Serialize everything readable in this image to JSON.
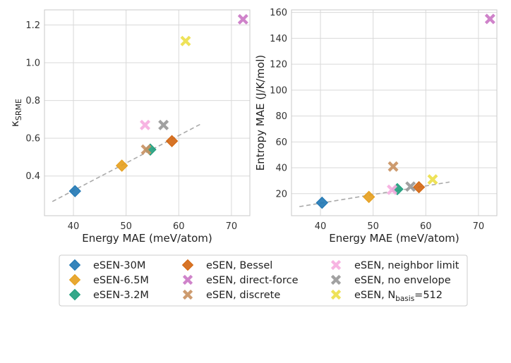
{
  "chart_data": [
    {
      "type": "scatter",
      "xlabel": "Energy MAE (meV/atom)",
      "ylabel_main": "κ",
      "ylabel_sub": "SRME",
      "xlim": [
        34.5,
        73.5
      ],
      "ylim": [
        0.19,
        1.28
      ],
      "xticks": [
        40,
        50,
        60,
        70
      ],
      "yticks": [
        0.4,
        0.6,
        0.8,
        1.0,
        1.2
      ],
      "ytick_labels": [
        "0.4",
        "0.6",
        "0.8",
        "1.0",
        "1.2"
      ],
      "grid": true,
      "trendline": {
        "x": [
          36,
          64.5
        ],
        "y": [
          0.265,
          0.68
        ],
        "style": "dashed"
      },
      "points": [
        {
          "series": "eSEN-30M",
          "x": 40.3,
          "y": 0.32
        },
        {
          "series": "eSEN-6.5M",
          "x": 49.2,
          "y": 0.455
        },
        {
          "series": "eSEN-3.2M",
          "x": 54.6,
          "y": 0.54
        },
        {
          "series": "eSEN, Bessel",
          "x": 58.7,
          "y": 0.585
        },
        {
          "series": "eSEN, direct-force",
          "x": 72.2,
          "y": 1.23
        },
        {
          "series": "eSEN, discrete",
          "x": 53.8,
          "y": 0.54
        },
        {
          "series": "eSEN, neighbor limit",
          "x": 53.6,
          "y": 0.67
        },
        {
          "series": "eSEN, no envelope",
          "x": 57.1,
          "y": 0.67
        },
        {
          "series": "eSEN, N_basis=512",
          "x": 61.3,
          "y": 1.115
        }
      ]
    },
    {
      "type": "scatter",
      "xlabel": "Energy MAE (meV/atom)",
      "ylabel": "Entropy MAE (J/K/mol)",
      "xlim": [
        34.5,
        73.5
      ],
      "ylim": [
        3,
        162
      ],
      "xticks": [
        40,
        50,
        60,
        70
      ],
      "yticks": [
        20,
        40,
        60,
        80,
        100,
        120,
        140,
        160
      ],
      "ytick_labels": [
        "20",
        "40",
        "60",
        "80",
        "100",
        "120",
        "140",
        "160"
      ],
      "grid": true,
      "trendline": {
        "x": [
          36,
          64.5
        ],
        "y": [
          10,
          29
        ],
        "style": "dashed"
      },
      "points": [
        {
          "series": "eSEN-30M",
          "x": 40.3,
          "y": 13
        },
        {
          "series": "eSEN-6.5M",
          "x": 49.2,
          "y": 17.5
        },
        {
          "series": "eSEN-3.2M",
          "x": 54.6,
          "y": 23.5
        },
        {
          "series": "eSEN, Bessel",
          "x": 58.7,
          "y": 25
        },
        {
          "series": "eSEN, direct-force",
          "x": 72.2,
          "y": 155
        },
        {
          "series": "eSEN, discrete",
          "x": 53.8,
          "y": 41
        },
        {
          "series": "eSEN, neighbor limit",
          "x": 53.6,
          "y": 23
        },
        {
          "series": "eSEN, no envelope",
          "x": 57.1,
          "y": 25.5
        },
        {
          "series": "eSEN, N_basis=512",
          "x": 61.3,
          "y": 31
        }
      ]
    }
  ],
  "legend": {
    "placement": "bottom-center",
    "items": [
      {
        "series": "eSEN-30M",
        "label": "eSEN-30M",
        "marker": "diamond",
        "color": "#1f77b4"
      },
      {
        "series": "eSEN-6.5M",
        "label": "eSEN-6.5M",
        "marker": "diamond",
        "color": "#e69f1d"
      },
      {
        "series": "eSEN-3.2M",
        "label": "eSEN-3.2M",
        "marker": "diamond",
        "color": "#1f9e7d"
      },
      {
        "series": "eSEN, Bessel",
        "label": "eSEN, Bessel",
        "marker": "diamond",
        "color": "#d3650f"
      },
      {
        "series": "eSEN, direct-force",
        "label": "eSEN, direct-force",
        "marker": "x",
        "color": "#cc79c6"
      },
      {
        "series": "eSEN, discrete",
        "label": "eSEN, discrete",
        "marker": "x",
        "color": "#c99363"
      },
      {
        "series": "eSEN, neighbor limit",
        "label": "eSEN, neighbor limit",
        "marker": "x",
        "color": "#f7aee0"
      },
      {
        "series": "eSEN, no envelope",
        "label": "eSEN, no envelope",
        "marker": "x",
        "color": "#9a9a9a"
      },
      {
        "series": "eSEN, N_basis=512",
        "label_main": "eSEN, N",
        "label_sub": "basis",
        "label_tail": "=512",
        "marker": "x",
        "color": "#ede04b"
      }
    ]
  },
  "colors": {
    "grid": "#d9d9d9",
    "spine": "#c8c8c8",
    "trendline": "#aaaaaa"
  }
}
